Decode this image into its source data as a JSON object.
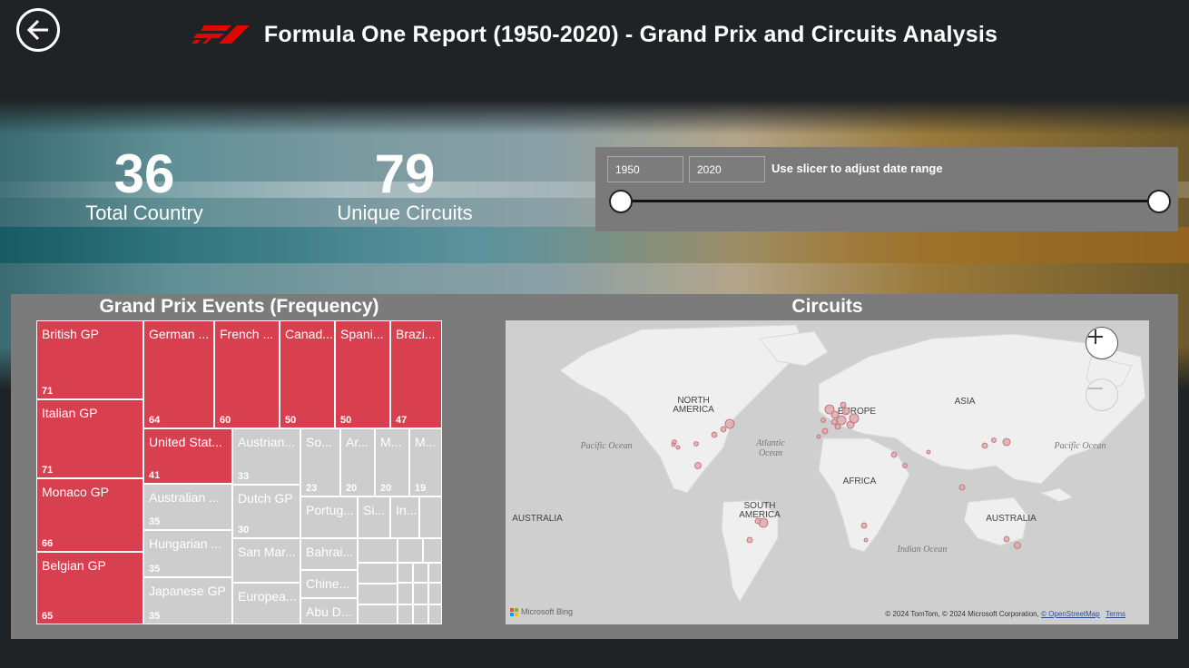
{
  "header": {
    "title": "Formula One Report (1950-2020) - Grand Prix and Circuits Analysis",
    "logo_icon": "f1-logo-icon",
    "back_icon": "back-arrow-icon",
    "accent": "#e10600"
  },
  "kpis": [
    {
      "value": "36",
      "label": "Total Country"
    },
    {
      "value": "79",
      "label": "Unique Circuits"
    }
  ],
  "slicer": {
    "start": "1950",
    "end": "2020",
    "hint": "Use slicer to adjust date range"
  },
  "treemap": {
    "title": "Grand Prix Events (Frequency)",
    "tiles": [
      {
        "name": "British GP",
        "value": "71"
      },
      {
        "name": "Italian GP",
        "value": "71"
      },
      {
        "name": "Monaco GP",
        "value": "66"
      },
      {
        "name": "Belgian GP",
        "value": "65"
      },
      {
        "name": "German ...",
        "value": "64"
      },
      {
        "name": "French ...",
        "value": "60"
      },
      {
        "name": "Canad...",
        "value": "50"
      },
      {
        "name": "Spani...",
        "value": "50"
      },
      {
        "name": "Brazi...",
        "value": "47"
      },
      {
        "name": "United Stat...",
        "value": "41"
      },
      {
        "name": "Australian ...",
        "value": "35"
      },
      {
        "name": "Hungarian ...",
        "value": "35"
      },
      {
        "name": "Japanese GP",
        "value": "35"
      },
      {
        "name": "Austrian...",
        "value": "33"
      },
      {
        "name": "Dutch GP",
        "value": "30"
      },
      {
        "name": "San Mar...",
        "value": ""
      },
      {
        "name": "Europea...",
        "value": ""
      },
      {
        "name": "So...",
        "value": "23"
      },
      {
        "name": "Ar...",
        "value": "20"
      },
      {
        "name": "M...",
        "value": "20"
      },
      {
        "name": "M...",
        "value": "19"
      },
      {
        "name": "Portug...",
        "value": ""
      },
      {
        "name": "Si...",
        "value": ""
      },
      {
        "name": "In...",
        "value": ""
      },
      {
        "name": "Bahrai...",
        "value": ""
      },
      {
        "name": "Chine...",
        "value": ""
      },
      {
        "name": "Abu D...",
        "value": ""
      }
    ],
    "highlight_color": "#d9404f",
    "muted_color": "#cdcdcd"
  },
  "map": {
    "title": "Circuits",
    "continents": [
      "NORTH AMERICA",
      "EUROPE",
      "ASIA",
      "AFRICA",
      "SOUTH AMERICA",
      "AUSTRALIA",
      "AUSTRALIA"
    ],
    "oceans": [
      "Pacific Ocean",
      "Atlantic Ocean",
      "Pacific Ocean",
      "Indian Ocean"
    ],
    "zoom_in_icon": "plus-icon",
    "zoom_out_icon": "minus-icon",
    "attribution_logo": "Microsoft Bing",
    "copyright": "© 2024 TomTom, © 2024 Microsoft Corporation,",
    "osm_link": "© OpenStreetMap",
    "terms_link": "Terms",
    "marker_color": "#d98a90"
  }
}
